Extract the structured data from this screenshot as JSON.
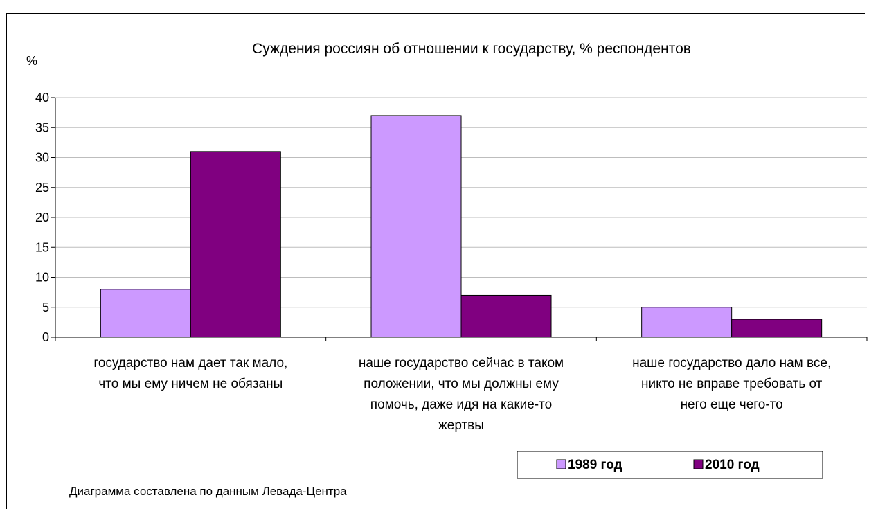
{
  "chart_data": {
    "type": "bar",
    "title": "Суждения россиян об отношении к государству, % респондентов",
    "ylabel": "%",
    "ylim": [
      0,
      40
    ],
    "yticks": [
      0,
      5,
      10,
      15,
      20,
      25,
      30,
      35,
      40
    ],
    "grid": true,
    "legend_position": "bottom-right",
    "categories": [
      [
        "государство нам дает так мало,",
        "что мы ему ничем не обязаны"
      ],
      [
        "наше государство сейчас в таком",
        "положении, что мы должны ему",
        "помочь, даже идя на  какие-то",
        "жертвы"
      ],
      [
        "наше государство дало нам все,",
        "никто не вправе требовать от",
        "него еще чего-то"
      ]
    ],
    "series": [
      {
        "name": "1989 год",
        "color": "#cc99ff",
        "values": [
          8,
          37,
          5
        ]
      },
      {
        "name": "2010 год",
        "color": "#800080",
        "values": [
          31,
          7,
          3
        ]
      }
    ],
    "note": "Диаграмма составлена по данным Левада-Центра"
  }
}
